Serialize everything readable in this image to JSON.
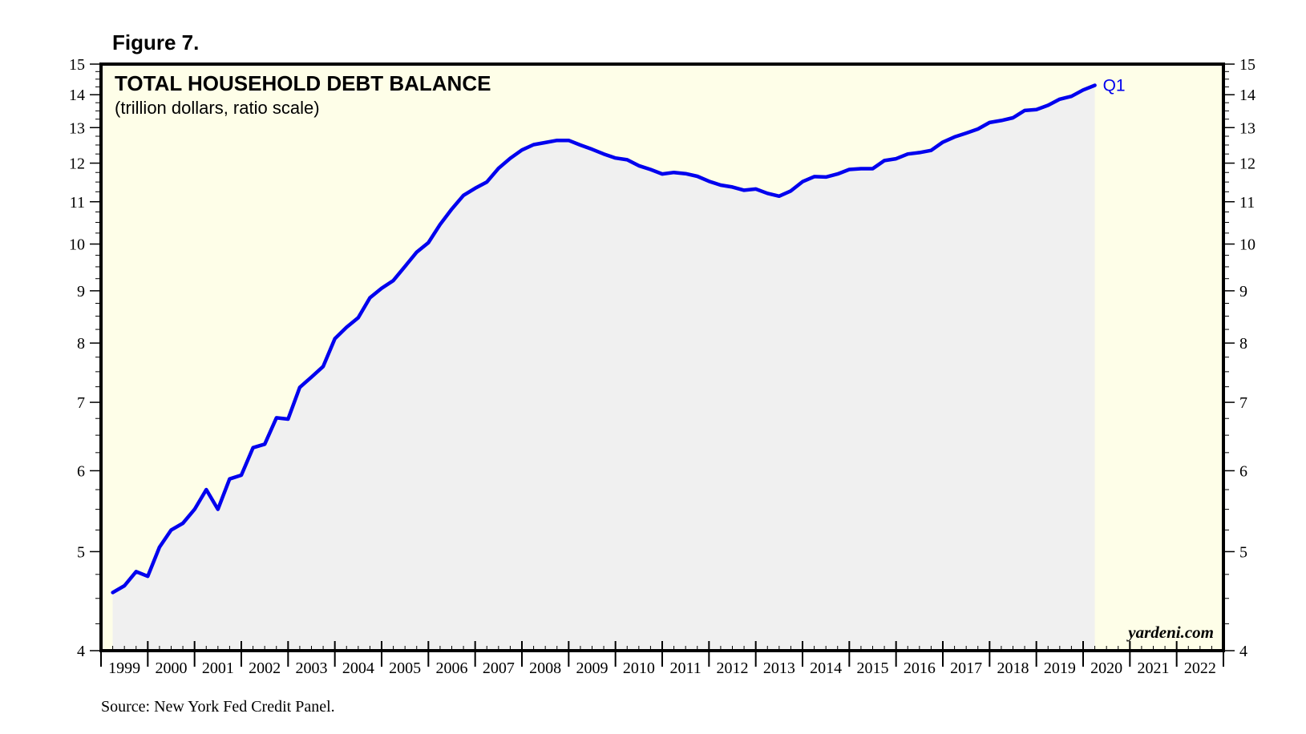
{
  "figure_label": "Figure 7.",
  "watermark": "yardeni.com",
  "source": "Source: New York Fed Credit Panel.",
  "colors": {
    "plot_background": "#fefee8",
    "area_fill": "#f0f0f0",
    "line": "#0000ee",
    "frame": "#000000"
  },
  "chart_data": {
    "type": "line",
    "title": "TOTAL HOUSEHOLD DEBT BALANCE",
    "subtitle": "(trillion dollars, ratio scale)",
    "y_scale": "log",
    "ylim": [
      4,
      15
    ],
    "y_ticks": [
      4,
      5,
      6,
      7,
      8,
      9,
      10,
      11,
      12,
      13,
      14,
      15
    ],
    "x_range": [
      1999,
      2023
    ],
    "x_categories": [
      "1999",
      "2000",
      "2001",
      "2002",
      "2003",
      "2004",
      "2005",
      "2006",
      "2007",
      "2008",
      "2009",
      "2010",
      "2011",
      "2012",
      "2013",
      "2014",
      "2015",
      "2016",
      "2017",
      "2018",
      "2019",
      "2020",
      "2021",
      "2022"
    ],
    "end_label": "Q1",
    "area_under_line": true,
    "grid": false,
    "series": [
      {
        "values": [
          [
            1999.25,
            4.56
          ],
          [
            1999.5,
            4.63
          ],
          [
            1999.75,
            4.78
          ],
          [
            2000.0,
            4.73
          ],
          [
            2000.25,
            5.05
          ],
          [
            2000.5,
            5.25
          ],
          [
            2000.75,
            5.33
          ],
          [
            2001.0,
            5.5
          ],
          [
            2001.25,
            5.75
          ],
          [
            2001.5,
            5.5
          ],
          [
            2001.75,
            5.89
          ],
          [
            2002.0,
            5.94
          ],
          [
            2002.25,
            6.32
          ],
          [
            2002.5,
            6.37
          ],
          [
            2002.75,
            6.76
          ],
          [
            2003.0,
            6.74
          ],
          [
            2003.25,
            7.24
          ],
          [
            2003.5,
            7.41
          ],
          [
            2003.75,
            7.59
          ],
          [
            2004.0,
            8.08
          ],
          [
            2004.25,
            8.29
          ],
          [
            2004.5,
            8.47
          ],
          [
            2004.75,
            8.86
          ],
          [
            2005.0,
            9.05
          ],
          [
            2005.25,
            9.21
          ],
          [
            2005.5,
            9.51
          ],
          [
            2005.75,
            9.82
          ],
          [
            2006.0,
            10.03
          ],
          [
            2006.25,
            10.45
          ],
          [
            2006.5,
            10.82
          ],
          [
            2006.75,
            11.16
          ],
          [
            2007.0,
            11.34
          ],
          [
            2007.25,
            11.5
          ],
          [
            2007.5,
            11.86
          ],
          [
            2007.75,
            12.13
          ],
          [
            2008.0,
            12.36
          ],
          [
            2008.25,
            12.51
          ],
          [
            2008.5,
            12.57
          ],
          [
            2008.75,
            12.63
          ],
          [
            2009.0,
            12.63
          ],
          [
            2009.25,
            12.5
          ],
          [
            2009.5,
            12.38
          ],
          [
            2009.75,
            12.25
          ],
          [
            2010.0,
            12.14
          ],
          [
            2010.25,
            12.09
          ],
          [
            2010.5,
            11.93
          ],
          [
            2010.75,
            11.83
          ],
          [
            2011.0,
            11.71
          ],
          [
            2011.25,
            11.75
          ],
          [
            2011.5,
            11.72
          ],
          [
            2011.75,
            11.65
          ],
          [
            2012.0,
            11.52
          ],
          [
            2012.25,
            11.42
          ],
          [
            2012.5,
            11.37
          ],
          [
            2012.75,
            11.29
          ],
          [
            2013.0,
            11.32
          ],
          [
            2013.25,
            11.21
          ],
          [
            2013.5,
            11.14
          ],
          [
            2013.75,
            11.27
          ],
          [
            2014.0,
            11.51
          ],
          [
            2014.25,
            11.64
          ],
          [
            2014.5,
            11.63
          ],
          [
            2014.75,
            11.71
          ],
          [
            2015.0,
            11.83
          ],
          [
            2015.25,
            11.85
          ],
          [
            2015.5,
            11.85
          ],
          [
            2015.75,
            12.07
          ],
          [
            2016.0,
            12.12
          ],
          [
            2016.25,
            12.25
          ],
          [
            2016.5,
            12.29
          ],
          [
            2016.75,
            12.35
          ],
          [
            2017.0,
            12.58
          ],
          [
            2017.25,
            12.73
          ],
          [
            2017.5,
            12.84
          ],
          [
            2017.75,
            12.96
          ],
          [
            2018.0,
            13.15
          ],
          [
            2018.25,
            13.21
          ],
          [
            2018.5,
            13.29
          ],
          [
            2018.75,
            13.51
          ],
          [
            2019.0,
            13.54
          ],
          [
            2019.25,
            13.67
          ],
          [
            2019.5,
            13.86
          ],
          [
            2019.75,
            13.95
          ],
          [
            2020.0,
            14.15
          ],
          [
            2020.25,
            14.3
          ]
        ]
      }
    ]
  }
}
